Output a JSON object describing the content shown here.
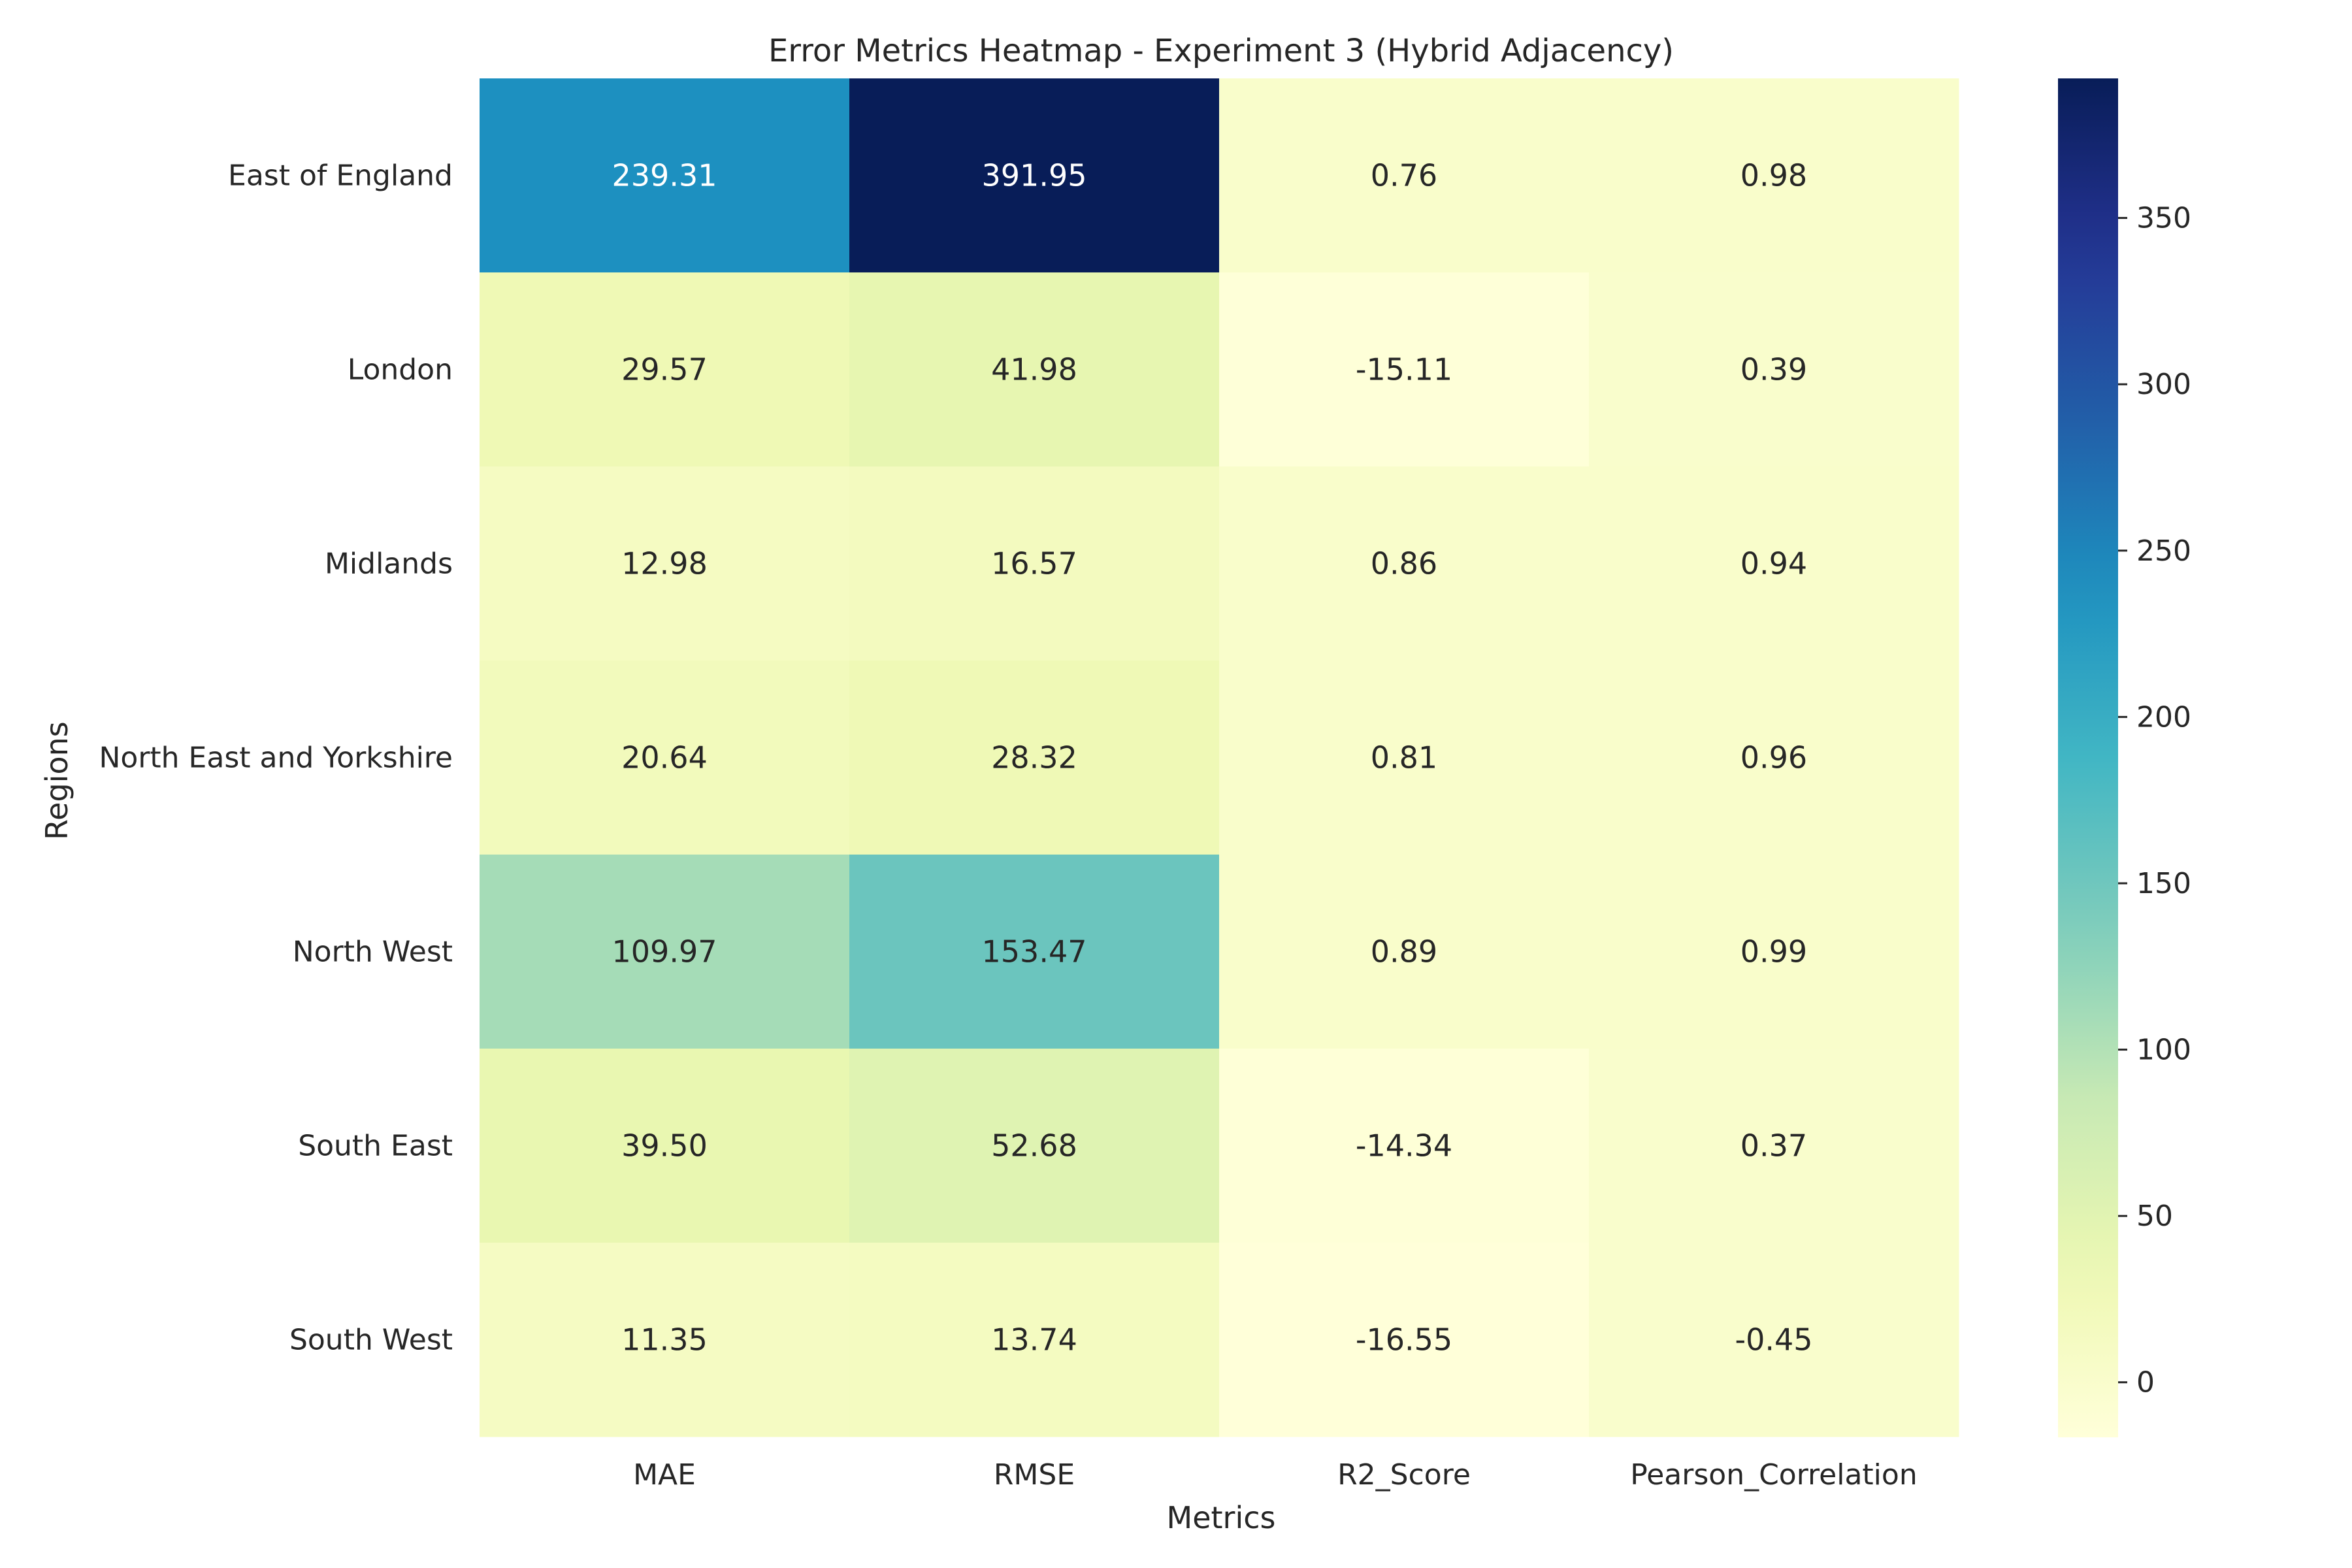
{
  "chart_data": {
    "type": "heatmap",
    "title": "Error Metrics Heatmap - Experiment 3 (Hybrid Adjacency)",
    "xlabel": "Metrics",
    "ylabel": "Regions",
    "columns": [
      "MAE",
      "RMSE",
      "R2_Score",
      "Pearson_Correlation"
    ],
    "rows": [
      "East of England",
      "London",
      "Midlands",
      "North East and Yorkshire",
      "North West",
      "South East",
      "South West"
    ],
    "values": [
      [
        239.31,
        391.95,
        0.76,
        0.98
      ],
      [
        29.57,
        41.98,
        -15.11,
        0.39
      ],
      [
        12.98,
        16.57,
        0.86,
        0.94
      ],
      [
        20.64,
        28.32,
        0.81,
        0.96
      ],
      [
        109.97,
        153.47,
        0.89,
        0.99
      ],
      [
        39.5,
        52.68,
        -14.34,
        0.37
      ],
      [
        11.35,
        13.74,
        -16.55,
        -0.45
      ]
    ],
    "value_labels": [
      [
        "239.31",
        "391.95",
        "0.76",
        "0.98"
      ],
      [
        "29.57",
        "41.98",
        "-15.11",
        "0.39"
      ],
      [
        "12.98",
        "16.57",
        "0.86",
        "0.94"
      ],
      [
        "20.64",
        "28.32",
        "0.81",
        "0.96"
      ],
      [
        "109.97",
        "153.47",
        "0.89",
        "0.99"
      ],
      [
        "39.50",
        "52.68",
        "-14.34",
        "0.37"
      ],
      [
        "11.35",
        "13.74",
        "-16.55",
        "-0.45"
      ]
    ],
    "colormap": "YlGnBu",
    "color_range": [
      -16.55,
      391.95
    ],
    "colorbar_ticks": [
      0,
      50,
      100,
      150,
      200,
      250,
      300,
      350
    ],
    "colorbar_tick_labels": [
      "0",
      "50",
      "100",
      "150",
      "200",
      "250",
      "300",
      "350"
    ],
    "grid": false,
    "legend": "colorbar-right"
  }
}
